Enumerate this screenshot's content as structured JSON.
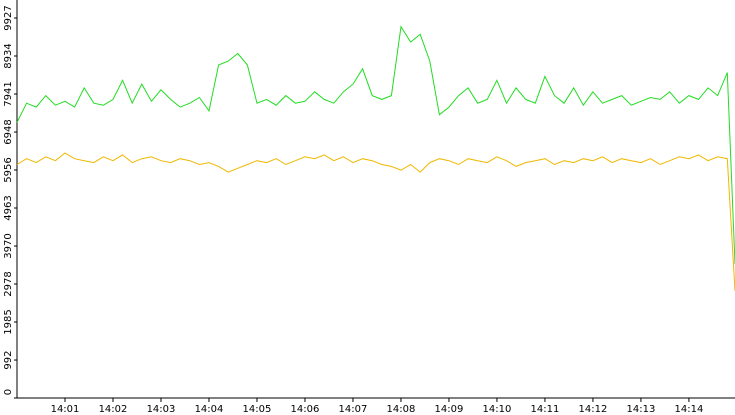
{
  "chart_data": {
    "type": "line",
    "x": [
      0,
      0.2,
      0.4,
      0.6,
      0.8,
      1,
      1.2,
      1.4,
      1.6,
      1.8,
      2,
      2.2,
      2.4,
      2.6,
      2.8,
      3,
      3.2,
      3.4,
      3.6,
      3.8,
      4,
      4.2,
      4.4,
      4.6,
      4.8,
      5,
      5.2,
      5.4,
      5.6,
      5.8,
      6,
      6.2,
      6.4,
      6.6,
      6.8,
      7,
      7.2,
      7.4,
      7.6,
      7.8,
      8,
      8.2,
      8.4,
      8.6,
      8.8,
      9,
      9.2,
      9.4,
      9.6,
      9.8,
      10,
      10.2,
      10.4,
      10.6,
      10.8,
      11,
      11.2,
      11.4,
      11.6,
      11.8,
      12,
      12.2,
      12.4,
      12.6,
      12.8,
      13,
      13.2,
      13.4,
      13.6,
      13.8,
      14,
      14.2,
      14.4,
      14.6,
      14.8,
      14.96
    ],
    "series": [
      {
        "color": "#22dd22",
        "values": [
          7200,
          7700,
          7600,
          7900,
          7650,
          7750,
          7600,
          8100,
          7700,
          7650,
          7800,
          8300,
          7700,
          8200,
          7750,
          8050,
          7800,
          7600,
          7700,
          7850,
          7500,
          8700,
          8800,
          9000,
          8700,
          7700,
          7800,
          7650,
          7900,
          7700,
          7750,
          8000,
          7800,
          7700,
          8000,
          8200,
          8600,
          7900,
          7800,
          7900,
          9700,
          9300,
          9500,
          8800,
          7400,
          7600,
          7900,
          8100,
          7700,
          7800,
          8300,
          7700,
          8100,
          7800,
          7700,
          8400,
          7900,
          7700,
          8100,
          7650,
          8000,
          7700,
          7800,
          7900,
          7650,
          7750,
          7850,
          7800,
          8000,
          7700,
          7900,
          7800,
          8100,
          7900,
          8500,
          3500
        ]
      },
      {
        "color": "#f0b800",
        "values": [
          6100,
          6250,
          6150,
          6300,
          6200,
          6400,
          6250,
          6200,
          6150,
          6300,
          6200,
          6350,
          6150,
          6250,
          6300,
          6200,
          6150,
          6250,
          6200,
          6100,
          6150,
          6050,
          5900,
          6000,
          6100,
          6200,
          6150,
          6250,
          6100,
          6200,
          6300,
          6250,
          6350,
          6200,
          6300,
          6150,
          6250,
          6200,
          6100,
          6050,
          5950,
          6100,
          5900,
          6150,
          6250,
          6200,
          6100,
          6250,
          6200,
          6150,
          6300,
          6200,
          6050,
          6150,
          6200,
          6250,
          6100,
          6200,
          6150,
          6250,
          6200,
          6300,
          6150,
          6250,
          6200,
          6150,
          6250,
          6100,
          6200,
          6300,
          6250,
          6350,
          6200,
          6300,
          6250,
          2800
        ]
      }
    ],
    "xlim": [
      0,
      14.96
    ],
    "xticks": [
      {
        "value": 1,
        "label": "14:01"
      },
      {
        "value": 2,
        "label": "14:02"
      },
      {
        "value": 3,
        "label": "14:03"
      },
      {
        "value": 4,
        "label": "14:04"
      },
      {
        "value": 5,
        "label": "14:05"
      },
      {
        "value": 6,
        "label": "14:06"
      },
      {
        "value": 7,
        "label": "14:07"
      },
      {
        "value": 8,
        "label": "14:08"
      },
      {
        "value": 9,
        "label": "14:09"
      },
      {
        "value": 10,
        "label": "14:10"
      },
      {
        "value": 11,
        "label": "14:11"
      },
      {
        "value": 12,
        "label": "14:12"
      },
      {
        "value": 13,
        "label": "14:13"
      },
      {
        "value": 14,
        "label": "14:14"
      }
    ],
    "ylim": [
      0,
      10397
    ],
    "yticks": [
      0,
      992,
      1985,
      2978,
      3970,
      4963,
      5956,
      6948,
      7941,
      8934,
      9927
    ]
  }
}
